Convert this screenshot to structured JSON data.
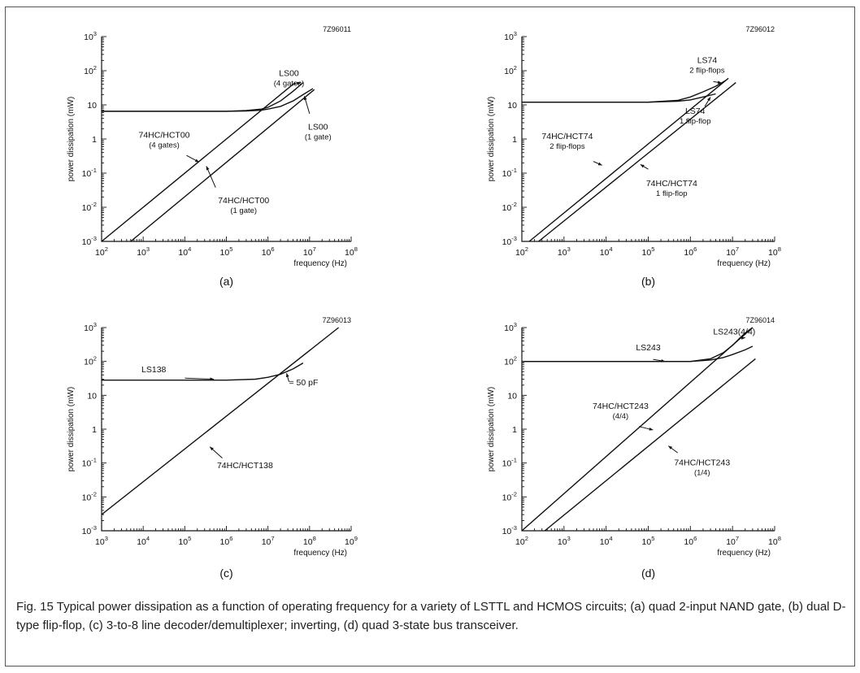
{
  "caption": "Fig. 15 Typical power dissipation as a function of operating frequency for a variety of LSTTL and HCMOS circuits; (a) quad 2-input NAND gate, (b) dual D-type flip-flop, (c) 3-to-8 line decoder/demultiplexer; inverting, (d) quad 3-state bus transceiver.",
  "chart_data": [
    {
      "type": "line",
      "panel_label": "(a)",
      "figure_code": "7Z96011",
      "xlabel": "frequency (Hz)",
      "ylabel": "power dissipation (mW)",
      "xscale": "log",
      "yscale": "log",
      "xlim": [
        100,
        100000000
      ],
      "ylim": [
        0.001,
        1000
      ],
      "x_ticks": [
        100,
        1000,
        10000,
        100000,
        1000000,
        10000000,
        100000000
      ],
      "x_tick_labels": [
        "10^2",
        "10^3",
        "10^4",
        "10^5",
        "10^6",
        "10^7",
        "10^8"
      ],
      "y_ticks": [
        0.001,
        0.01,
        0.1,
        1,
        10,
        100,
        1000
      ],
      "y_tick_labels": [
        "10^-3",
        "10^-2",
        "10^-1",
        "1",
        "10",
        "10^2",
        "10^3"
      ],
      "series": [
        {
          "name": "LS00 (4 gates)",
          "x": [
            100,
            100000,
            300000,
            700000,
            1000000,
            2000000,
            4000000,
            7000000
          ],
          "y": [
            6.5,
            6.5,
            6.8,
            7.5,
            8.5,
            13,
            25,
            45
          ]
        },
        {
          "name": "LS00 (1 gate)",
          "x": [
            100,
            100000,
            300000,
            700000,
            1000000,
            2000000,
            4000000,
            7000000,
            12000000
          ],
          "y": [
            6.5,
            6.5,
            6.6,
            7,
            7.5,
            9,
            13,
            20,
            30
          ]
        },
        {
          "name": "74HC/HCT00 (4 gates)",
          "x": [
            100,
            4500000
          ],
          "y": [
            0.001,
            45
          ]
        },
        {
          "name": "74HC/HCT00 (1 gate)",
          "x": [
            500,
            13000000
          ],
          "y": [
            0.001,
            28
          ]
        }
      ],
      "annotations": [
        {
          "text": "LS00",
          "subtext": "(4 gates)"
        },
        {
          "text": "LS00",
          "subtext": "(1 gate)"
        },
        {
          "text": "74HC/HCT00",
          "subtext": "(4 gates)"
        },
        {
          "text": "74HC/HCT00",
          "subtext": "(1 gate)"
        }
      ],
      "grid": false
    },
    {
      "type": "line",
      "panel_label": "(b)",
      "figure_code": "7Z96012",
      "xlabel": "frequency (Hz)",
      "ylabel": "power dissipation (mW)",
      "xscale": "log",
      "yscale": "log",
      "xlim": [
        100,
        100000000
      ],
      "ylim": [
        0.001,
        1000
      ],
      "x_ticks": [
        100,
        1000,
        10000,
        100000,
        1000000,
        10000000,
        100000000
      ],
      "x_tick_labels": [
        "10^2",
        "10^3",
        "10^4",
        "10^5",
        "10^6",
        "10^7",
        "10^8"
      ],
      "y_ticks": [
        0.001,
        0.01,
        0.1,
        1,
        10,
        100,
        1000
      ],
      "y_tick_labels": [
        "10^-3",
        "10^-2",
        "10^-1",
        "1",
        "10",
        "10^2",
        "10^3"
      ],
      "series": [
        {
          "name": "LS74 2 flip-flops",
          "x": [
            100,
            100000,
            500000,
            1000000,
            2000000,
            4000000,
            7000000
          ],
          "y": [
            12,
            12,
            13.5,
            17,
            24,
            35,
            52
          ]
        },
        {
          "name": "LS74 1 flip-flop",
          "x": [
            100,
            100000,
            500000,
            1000000,
            2000000,
            4000000
          ],
          "y": [
            12,
            12,
            12.8,
            14,
            17,
            21
          ]
        },
        {
          "name": "74HC/HCT74 2 flip-flops",
          "x": [
            150,
            8000000
          ],
          "y": [
            0.001,
            60
          ]
        },
        {
          "name": "74HC/HCT74 1 flip-flop",
          "x": [
            250,
            12000000
          ],
          "y": [
            0.001,
            45
          ]
        }
      ],
      "annotations": [
        {
          "text": "LS74",
          "subtext": "2 flip-flops"
        },
        {
          "text": "LS74",
          "subtext": "1 flip-flop"
        },
        {
          "text": "74HC/HCT74",
          "subtext": "2 flip-flops"
        },
        {
          "text": "74HC/HCT74",
          "subtext": "1 flip-flop"
        }
      ],
      "grid": false
    },
    {
      "type": "line",
      "panel_label": "(c)",
      "figure_code": "7Z96013",
      "xlabel": "frequency (Hz)",
      "ylabel": "power dissipation (mW)",
      "xscale": "log",
      "yscale": "log",
      "xlim": [
        1000,
        1000000000
      ],
      "ylim": [
        0.001,
        1000
      ],
      "x_ticks": [
        1000,
        10000,
        100000,
        1000000,
        10000000,
        100000000,
        1000000000
      ],
      "x_tick_labels": [
        "10^3",
        "10^4",
        "10^5",
        "10^6",
        "10^7",
        "10^8",
        "10^9"
      ],
      "y_ticks": [
        0.001,
        0.01,
        0.1,
        1,
        10,
        100,
        1000
      ],
      "y_tick_labels": [
        "10^-3",
        "10^-2",
        "10^-1",
        "1",
        "10",
        "10^2",
        "10^3"
      ],
      "series": [
        {
          "name": "LS138",
          "x": [
            1000,
            1000000,
            5000000,
            10000000,
            20000000,
            40000000,
            70000000
          ],
          "y": [
            28,
            28,
            30,
            34,
            42,
            60,
            90
          ]
        },
        {
          "name": "74HC/HCT138",
          "x": [
            1000,
            500000000
          ],
          "y": [
            0.003,
            1000
          ]
        }
      ],
      "annotations": [
        {
          "text": "LS138"
        },
        {
          "text": "= 50 pF"
        },
        {
          "text": "74HC/HCT138"
        }
      ],
      "grid": false
    },
    {
      "type": "line",
      "panel_label": "(d)",
      "figure_code": "7Z96014",
      "xlabel": "frequency (Hz)",
      "ylabel": "power dissipation (mW)",
      "xscale": "log",
      "yscale": "log",
      "xlim": [
        100,
        100000000
      ],
      "ylim": [
        0.001,
        1000
      ],
      "x_ticks": [
        100,
        1000,
        10000,
        100000,
        1000000,
        10000000,
        100000000
      ],
      "x_tick_labels": [
        "10^2",
        "10^3",
        "10^4",
        "10^5",
        "10^6",
        "10^7",
        "10^8"
      ],
      "y_ticks": [
        0.001,
        0.01,
        0.1,
        1,
        10,
        100,
        1000
      ],
      "y_tick_labels": [
        "10^-3",
        "10^-2",
        "10^-1",
        "1",
        "10",
        "10^2",
        "10^3"
      ],
      "series": [
        {
          "name": "LS243(4/4)",
          "x": [
            100,
            1000000,
            3000000,
            6000000,
            10000000,
            20000000,
            30000000
          ],
          "y": [
            100,
            100,
            120,
            180,
            300,
            700,
            1000
          ]
        },
        {
          "name": "LS243",
          "x": [
            100,
            1000000,
            3000000,
            6000000,
            10000000,
            20000000,
            30000000
          ],
          "y": [
            100,
            100,
            110,
            130,
            160,
            220,
            280
          ]
        },
        {
          "name": "74HC/HCT243 (4/4)",
          "x": [
            100,
            30000000
          ],
          "y": [
            0.001,
            1000
          ]
        },
        {
          "name": "74HC/HCT243 (1/4)",
          "x": [
            350,
            35000000
          ],
          "y": [
            0.001,
            120
          ]
        }
      ],
      "annotations": [
        {
          "text": "LS243(4/4)"
        },
        {
          "text": "LS243"
        },
        {
          "text": "74HC/HCT243",
          "subtext": "(4/4)"
        },
        {
          "text": "74HC/HCT243",
          "subtext": "(1/4)"
        }
      ],
      "grid": false
    }
  ]
}
